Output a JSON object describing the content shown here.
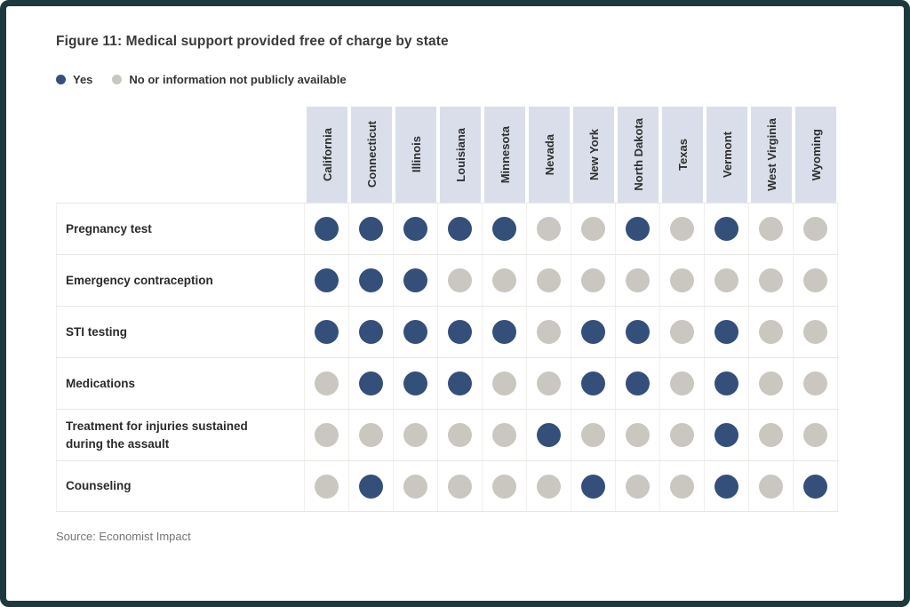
{
  "figure": {
    "title": "Figure 11: Medical support provided free of charge by state",
    "source": "Source: Economist Impact"
  },
  "legend": {
    "yes_label": "Yes",
    "no_label": "No or information not publicly available"
  },
  "colors": {
    "yes_dot": "#344f7a",
    "no_dot": "#c9c7c0",
    "header_bg": "#dadeea",
    "frame_border": "#1c3a3e"
  },
  "chart_data": {
    "type": "heatmap",
    "subtype": "dot-matrix",
    "title": "Figure 11: Medical support provided free of charge by state",
    "legend_entries": [
      "Yes",
      "No or information not publicly available"
    ],
    "legend_position": "top-left",
    "value_meaning": {
      "1": "Yes",
      "0": "No or information not publicly available"
    },
    "columns": [
      "California",
      "Connecticut",
      "Illinois",
      "Louisiana",
      "Minnesota",
      "Nevada",
      "New York",
      "North Dakota",
      "Texas",
      "Vermont",
      "West Virginia",
      "Wyoming"
    ],
    "rows": [
      {
        "label": "Pregnancy test",
        "values": [
          1,
          1,
          1,
          1,
          1,
          0,
          0,
          1,
          0,
          1,
          0,
          0
        ]
      },
      {
        "label": "Emergency contraception",
        "values": [
          1,
          1,
          1,
          0,
          0,
          0,
          0,
          0,
          0,
          0,
          0,
          0
        ]
      },
      {
        "label": "STI testing",
        "values": [
          1,
          1,
          1,
          1,
          1,
          0,
          1,
          1,
          0,
          1,
          0,
          0
        ]
      },
      {
        "label": "Medications",
        "values": [
          0,
          1,
          1,
          1,
          0,
          0,
          1,
          1,
          0,
          1,
          0,
          0
        ]
      },
      {
        "label": "Treatment for injuries sustained during the assault",
        "values": [
          0,
          0,
          0,
          0,
          0,
          1,
          0,
          0,
          0,
          1,
          0,
          0
        ]
      },
      {
        "label": "Counseling",
        "values": [
          0,
          1,
          0,
          0,
          0,
          0,
          1,
          0,
          0,
          1,
          0,
          1
        ]
      }
    ],
    "source": "Source: Economist Impact"
  }
}
